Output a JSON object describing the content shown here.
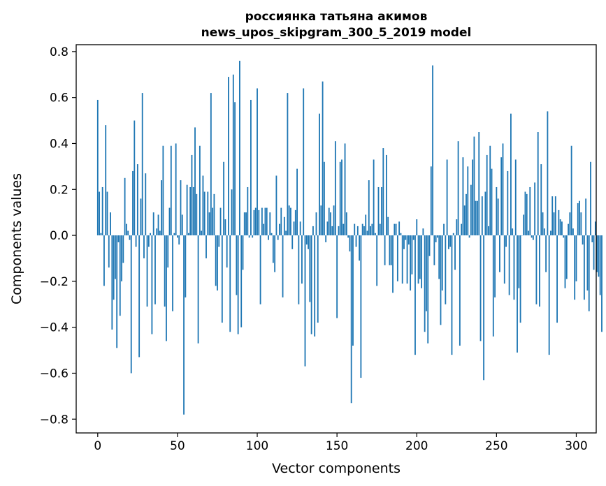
{
  "chart_data": {
    "type": "bar",
    "title": "россиянка татьяна акимов",
    "subtitle": "news_upos_skipgram_300_5_2019 model",
    "xlabel": "Vector components",
    "ylabel": "Components values",
    "xlim": [
      -13.5,
      312.5
    ],
    "ylim": [
      -0.86,
      0.83
    ],
    "x_ticks": [
      0,
      50,
      100,
      150,
      200,
      250,
      300
    ],
    "x_tick_labels": [
      "0",
      "50",
      "100",
      "150",
      "200",
      "250",
      "300"
    ],
    "y_ticks": [
      -0.8,
      -0.6,
      -0.4,
      -0.2,
      0.0,
      0.2,
      0.4,
      0.6,
      0.8
    ],
    "y_tick_labels": [
      "−0.8",
      "−0.6",
      "−0.4",
      "−0.2",
      "0.0",
      "0.2",
      "0.4",
      "0.6",
      "0.8"
    ],
    "bar_color": "#1f77b4",
    "values": [
      0.59,
      0.19,
      0.01,
      0.21,
      -0.22,
      0.48,
      0.19,
      -0.14,
      0.1,
      -0.41,
      -0.28,
      -0.19,
      -0.49,
      -0.03,
      -0.35,
      -0.2,
      -0.12,
      0.25,
      0.05,
      0.02,
      -0.02,
      -0.6,
      0.28,
      0.5,
      -0.05,
      0.31,
      -0.53,
      0.16,
      0.62,
      -0.1,
      0.27,
      -0.31,
      -0.05,
      0.01,
      -0.43,
      0.1,
      -0.3,
      0.03,
      0.09,
      0.02,
      0.24,
      0.39,
      -0.31,
      -0.46,
      -0.14,
      0.12,
      0.39,
      -0.33,
      0.01,
      0.4,
      -0.01,
      -0.04,
      0.24,
      0.09,
      -0.78,
      -0.27,
      0.22,
      0.01,
      0.21,
      0.35,
      0.21,
      0.47,
      0.18,
      -0.47,
      0.39,
      0.02,
      0.26,
      0.19,
      -0.1,
      0.19,
      0.1,
      0.62,
      0.12,
      0.18,
      -0.22,
      -0.24,
      -0.05,
      0.12,
      -0.38,
      0.32,
      0.07,
      -0.14,
      0.69,
      -0.42,
      0.2,
      0.7,
      0.58,
      -0.26,
      -0.43,
      0.76,
      -0.4,
      -0.15,
      0.1,
      0.1,
      0.21,
      -0.01,
      0.59,
      -0.01,
      0.11,
      0.12,
      0.64,
      0.11,
      -0.3,
      0.12,
      0.05,
      0.12,
      0.12,
      -0.02,
      0.1,
      0.01,
      -0.12,
      -0.16,
      0.26,
      -0.02,
      0.05,
      0.12,
      -0.27,
      0.08,
      0.02,
      0.62,
      0.13,
      0.12,
      -0.06,
      0.06,
      0.11,
      0.29,
      -0.3,
      0.06,
      -0.21,
      0.64,
      -0.57,
      -0.04,
      -0.06,
      -0.29,
      -0.43,
      0.04,
      -0.44,
      0.1,
      -0.38,
      0.53,
      0.13,
      0.67,
      0.32,
      -0.03,
      0.06,
      0.12,
      0.1,
      0.04,
      0.13,
      0.41,
      -0.36,
      0.04,
      0.32,
      0.33,
      0.05,
      0.4,
      0.1,
      -0.01,
      -0.07,
      -0.73,
      -0.48,
      0.05,
      -0.05,
      0.04,
      -0.11,
      -0.62,
      0.05,
      0.04,
      0.09,
      0.02,
      0.24,
      0.04,
      0.05,
      0.33,
      0.01,
      -0.22,
      0.21,
      0.05,
      0.21,
      0.38,
      -0.13,
      0.35,
      0.08,
      -0.13,
      -0.13,
      -0.25,
      0.05,
      0.05,
      -0.2,
      0.06,
      0.01,
      -0.21,
      -0.06,
      -0.02,
      -0.21,
      -0.04,
      -0.24,
      -0.17,
      -0.02,
      -0.52,
      0.07,
      -0.21,
      -0.19,
      -0.23,
      0.03,
      -0.42,
      -0.33,
      -0.47,
      -0.09,
      0.3,
      0.74,
      -0.13,
      -0.03,
      -0.01,
      -0.19,
      -0.39,
      -0.24,
      0.05,
      -0.3,
      0.33,
      -0.06,
      -0.05,
      -0.52,
      0.01,
      -0.15,
      0.07,
      0.41,
      -0.48,
      0.05,
      0.34,
      0.13,
      0.18,
      0.3,
      -0.01,
      0.22,
      0.33,
      0.43,
      0.15,
      0.15,
      0.45,
      -0.46,
      0.17,
      -0.63,
      0.19,
      0.35,
      0.04,
      0.39,
      0.29,
      -0.44,
      -0.27,
      0.21,
      0.16,
      -0.16,
      0.34,
      0.4,
      -0.21,
      -0.05,
      0.28,
      -0.26,
      0.53,
      0.03,
      -0.28,
      0.33,
      -0.51,
      -0.23,
      -0.38,
      0.0,
      0.09,
      0.19,
      0.18,
      0.02,
      0.21,
      -0.01,
      -0.02,
      0.23,
      -0.3,
      0.45,
      -0.31,
      0.31,
      0.1,
      0.03,
      -0.16,
      0.54,
      -0.52,
      0.02,
      0.17,
      0.1,
      0.17,
      -0.38,
      0.11,
      0.07,
      0.06,
      -0.01,
      -0.23,
      -0.19,
      0.05,
      0.1,
      0.39,
      0.03,
      -0.28,
      -0.2,
      0.14,
      0.15,
      0.1,
      -0.04,
      -0.28,
      0.16,
      -0.24,
      -0.33,
      0.32,
      -0.03,
      -0.15,
      0.06,
      -0.16,
      -0.18,
      -0.26,
      -0.42
    ]
  }
}
